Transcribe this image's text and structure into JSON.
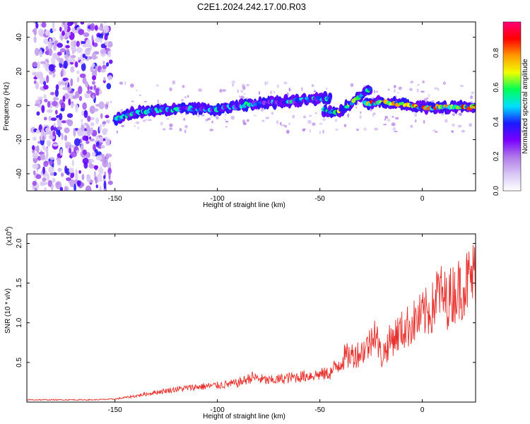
{
  "title": "C2E1.2024.242.17.00.R03",
  "colors": {
    "snr_line": "#e8302c",
    "axis": "#000000",
    "colorbar_stops": [
      "#ffffff",
      "#d8c6f5",
      "#b07ae8",
      "#7a00ff",
      "#1a1aff",
      "#00e0ff",
      "#00ff55",
      "#f0ff00",
      "#ff9a00",
      "#ff0000",
      "#ff0077"
    ]
  },
  "chart_data": [
    {
      "type": "heatmap",
      "name": "spectrogram",
      "xlabel": "Height of straight line (km)",
      "ylabel": "Frequency (Hz)",
      "xlim": [
        -193,
        26
      ],
      "ylim": [
        -50,
        49
      ],
      "xticks": [
        -150,
        -100,
        -50,
        0
      ],
      "xtick_labels": [
        "-150",
        "-100",
        "-50",
        "0"
      ],
      "yticks": [
        40,
        20,
        0,
        -20,
        -40
      ],
      "ytick_labels": [
        "40",
        "20",
        "0",
        "-20",
        "-40"
      ],
      "grid": false,
      "colorbar": {
        "label": "Normalized spectral amplitude",
        "range": [
          0.0,
          0.98
        ],
        "ticks": [
          0.0,
          0.2,
          0.4,
          0.6,
          0.8
        ],
        "tick_labels": [
          "0.0",
          "0.2",
          "0.4",
          "0.6",
          "0.8"
        ]
      },
      "ridges": [
        {
          "x": [
            -150,
            -140,
            -130,
            -120,
            -110,
            -100,
            -90,
            -80,
            -70,
            -60,
            -50,
            -45
          ],
          "y": [
            -8,
            -4,
            -3,
            -2,
            -2,
            -2,
            0,
            1,
            2,
            3,
            4,
            4
          ],
          "amplitude": 0.45
        },
        {
          "x": [
            -48,
            -42,
            -36,
            -30,
            -25
          ],
          "y": [
            -3,
            -4,
            0,
            6,
            10
          ],
          "amplitude": 0.55
        },
        {
          "x": [
            -28,
            -20,
            -10,
            0,
            10,
            20,
            26
          ],
          "y": [
            1,
            2,
            1,
            -1,
            -1,
            -1,
            -1
          ],
          "amplitude": 0.7
        }
      ],
      "noise_region_x": [
        -190,
        -152
      ]
    },
    {
      "type": "line",
      "name": "snr",
      "xlabel": "Height of straight line (km)",
      "ylabel": "SNR (10 * v/v)",
      "multiplier_label": "(x10^4)",
      "xlim": [
        -193,
        26
      ],
      "ylim": [
        0,
        2.12
      ],
      "xticks": [
        -150,
        -100,
        -50,
        0
      ],
      "xtick_labels": [
        "-150",
        "-100",
        "-50",
        "0"
      ],
      "yticks": [
        0.5,
        1.0,
        1.5,
        2.0
      ],
      "ytick_labels": [
        "0.5",
        "1.0",
        "1.5",
        "2.0"
      ],
      "grid": false,
      "series": [
        {
          "x": [
            -193,
            -180,
            -170,
            -160,
            -150,
            -140,
            -130,
            -120,
            -110,
            -100,
            -90,
            -83,
            -75,
            -65,
            -55,
            -45,
            -38,
            -30,
            -25,
            -24,
            -20,
            -15,
            -10,
            -5,
            0,
            5,
            8,
            10,
            12,
            15,
            20,
            26
          ],
          "y": [
            0.03,
            0.03,
            0.03,
            0.03,
            0.04,
            0.08,
            0.13,
            0.17,
            0.2,
            0.22,
            0.25,
            0.33,
            0.28,
            0.32,
            0.35,
            0.38,
            0.6,
            0.66,
            0.8,
            1.05,
            0.6,
            0.85,
            0.95,
            1.05,
            1.15,
            1.25,
            1.5,
            1.4,
            1.35,
            1.45,
            1.55,
            1.72
          ]
        }
      ]
    }
  ]
}
